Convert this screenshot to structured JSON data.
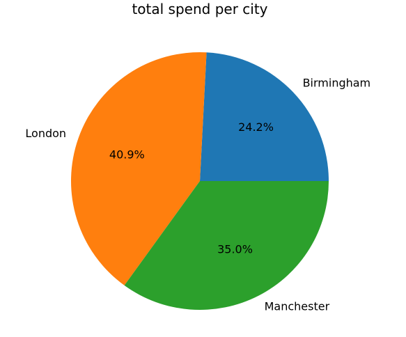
{
  "chart_data": {
    "type": "pie",
    "title": "total spend per city",
    "categories": [
      "Birmingham",
      "London",
      "Manchester"
    ],
    "values": [
      24.2,
      40.9,
      35.0
    ],
    "percent_labels": [
      "24.2%",
      "40.9%",
      "35.0%"
    ],
    "colors": [
      "#1f77b4",
      "#ff7f0e",
      "#2ca02c"
    ],
    "start_angle_deg": 0,
    "direction": "counterclockwise",
    "legend": "none"
  }
}
